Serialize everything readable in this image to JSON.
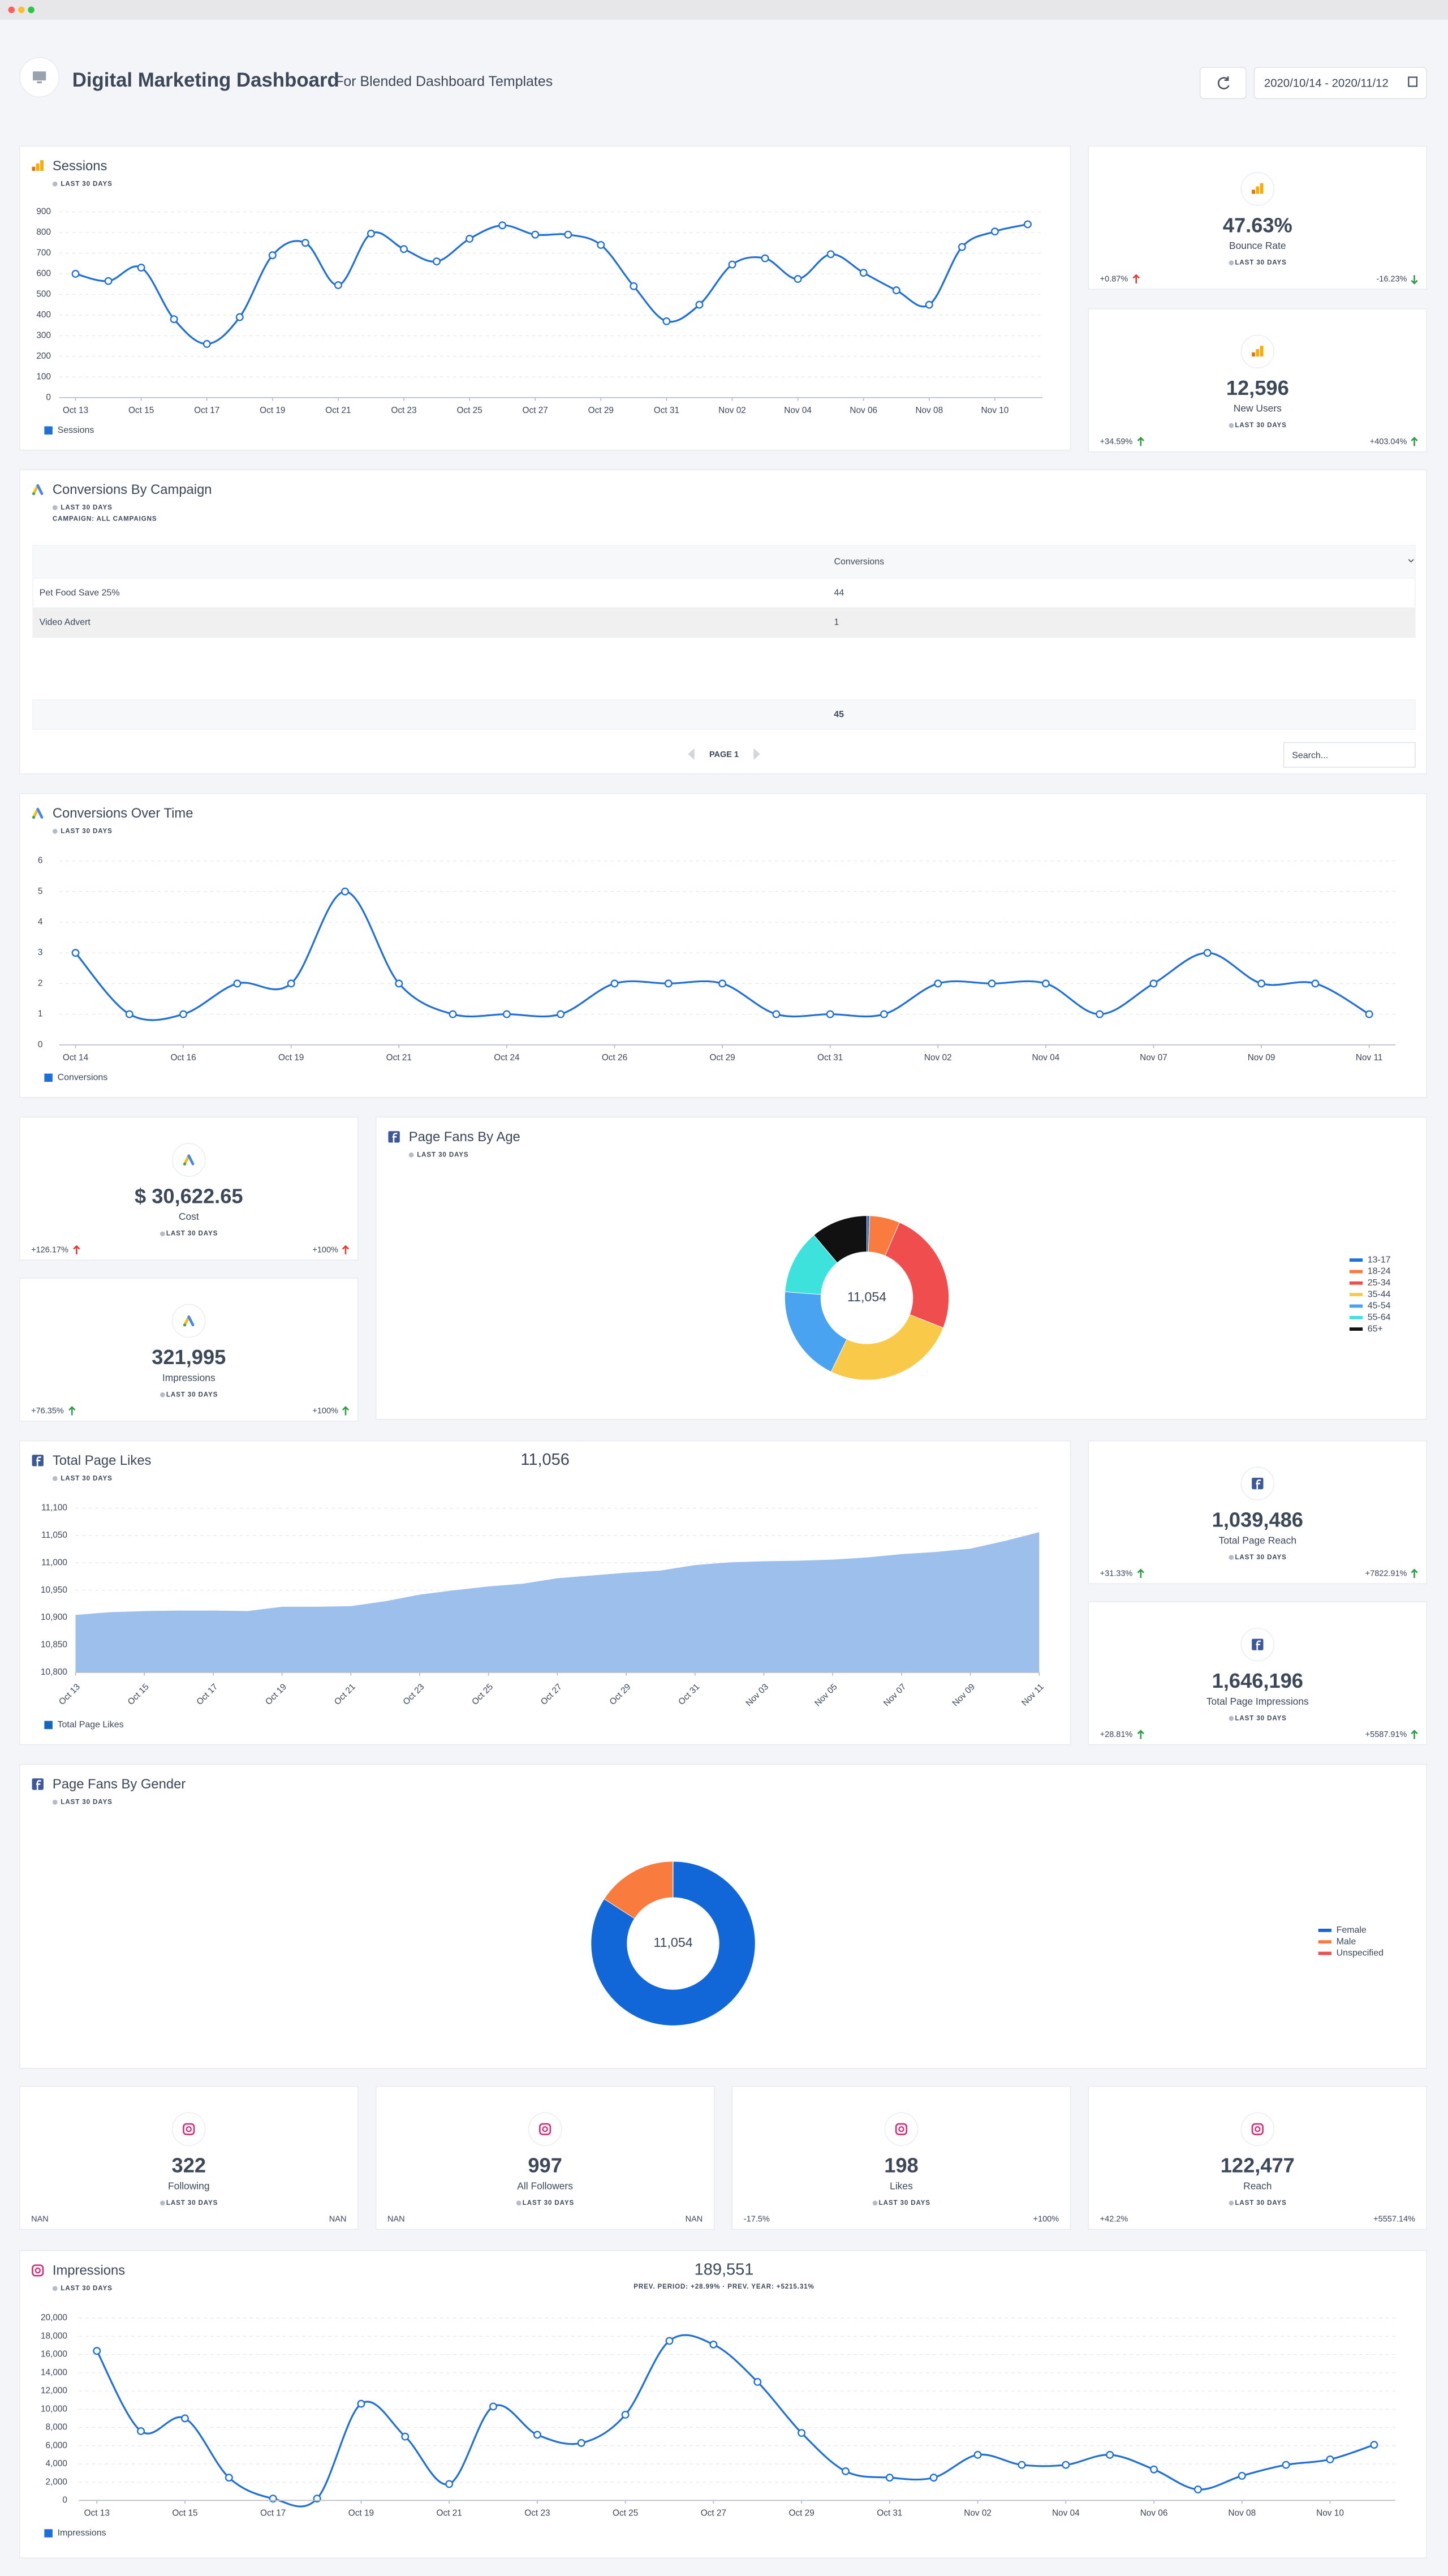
{
  "header": {
    "title": "Digital Marketing Dashboard",
    "subtitle": "For Blended Dashboard Templates",
    "date_range": "2020/10/14 - 2020/11/12"
  },
  "kpis": [
    {
      "title": "Bounce Rate",
      "value": "47.63%",
      "period": "LAST 30 DAYS",
      "left": "+0.87%",
      "right": "-16.23%",
      "left_color": "#e53935",
      "right_color": "#2e9e44"
    },
    {
      "title": "New Users",
      "value": "12,596",
      "period": "LAST 30 DAYS",
      "left": "+34.59%",
      "right": "+403.04%",
      "left_color": "#2e9e44",
      "right_color": "#2e9e44"
    },
    {
      "title": "Cost",
      "value": "$ 30,622.65",
      "period": "LAST 30 DAYS",
      "left": "+126.17%",
      "right": "+100%",
      "left_color": "#e53935",
      "right_color": "#e53935"
    },
    {
      "title": "Impressions",
      "value": "321,995",
      "period": "LAST 30 DAYS",
      "left": "+76.35%",
      "right": "+100%",
      "left_color": "#2e9e44",
      "right_color": "#2e9e44"
    },
    {
      "title": "Total Page Reach",
      "value": "1,039,486",
      "period": "LAST 30 DAYS",
      "left": "+31.33%",
      "right": "+7822.91%",
      "left_color": "#2e9e44",
      "right_color": "#2e9e44"
    },
    {
      "title": "Total Page Impressions",
      "value": "1,646,196",
      "period": "LAST 30 DAYS",
      "left": "+28.81%",
      "right": "+5587.91%",
      "left_color": "#2e9e44",
      "right_color": "#2e9e44"
    },
    {
      "title": "Following",
      "value": "322",
      "period": "LAST 30 DAYS",
      "left": "NAN",
      "right": "NAN"
    },
    {
      "title": "All Followers",
      "value": "997",
      "period": "LAST 30 DAYS",
      "left": "NAN",
      "right": "NAN"
    },
    {
      "title": "Likes",
      "value": "198",
      "period": "LAST 30 DAYS",
      "left": "-17.5%",
      "right": "+100%"
    },
    {
      "title": "Reach",
      "value": "122,477",
      "period": "LAST 30 DAYS",
      "left": "+42.2%",
      "right": "+5557.14%"
    }
  ],
  "table": {
    "title": "Conversions By Campaign",
    "subtitle": "LAST 30 DAYS",
    "filter": "CAMPAIGN: ALL CAMPAIGNS",
    "columns": [
      "Conversions"
    ],
    "rows": [
      [
        "Pet Food Save 25%",
        "44"
      ],
      [
        "Video Advert",
        "1"
      ]
    ],
    "total": "45",
    "pagination": "PAGE 1",
    "search_placeholder": "Search..."
  },
  "chart_data": [
    {
      "type": "line",
      "title": "Sessions",
      "subtitle": "LAST 30 DAYS",
      "categories": [
        "Oct 13",
        null,
        "Oct 15",
        null,
        "Oct 17",
        null,
        "Oct 19",
        null,
        "Oct 21",
        null,
        "Oct 23",
        null,
        "Oct 25",
        null,
        "Oct 27",
        null,
        "Oct 29",
        null,
        "Oct 31",
        null,
        "Nov 02",
        null,
        "Nov 04",
        null,
        "Nov 06",
        null,
        "Nov 08",
        null,
        "Nov 10",
        null
      ],
      "series": [
        {
          "name": "Sessions",
          "color": "#1e6fd9",
          "values": [
            600,
            565,
            630,
            380,
            260,
            390,
            690,
            750,
            545,
            795,
            720,
            660,
            770,
            835,
            790,
            790,
            740,
            540,
            370,
            450,
            645,
            675,
            575,
            695,
            605,
            520,
            450,
            730,
            805,
            840
          ]
        }
      ],
      "ylim": [
        0,
        900
      ],
      "yticks": [
        0,
        100,
        200,
        300,
        400,
        500,
        600,
        700,
        800,
        900
      ],
      "grid": true,
      "legend": "bottom-left"
    },
    {
      "type": "line",
      "title": "Conversions Over Time",
      "subtitle": "LAST 30 DAYS",
      "categories": [
        "Oct 14",
        null,
        "Oct 16",
        null,
        "Oct 19",
        null,
        "Oct 21",
        null,
        "Oct 24",
        null,
        "Oct 26",
        null,
        "Oct 29",
        null,
        "Oct 31",
        null,
        "Nov 02",
        null,
        "Nov 04",
        null,
        "Nov 07",
        null,
        "Nov 09",
        null,
        "Nov 11"
      ],
      "series": [
        {
          "name": "Conversions",
          "color": "#1e6fd9",
          "values": [
            3,
            1,
            1,
            2,
            2,
            5,
            2,
            1,
            1,
            1,
            2,
            2,
            2,
            1,
            1,
            1,
            2,
            2,
            2,
            1,
            2,
            3,
            2,
            2,
            1
          ]
        }
      ],
      "ylim": [
        0,
        6
      ],
      "yticks": [
        0,
        1,
        2,
        3,
        4,
        5,
        6
      ],
      "grid": true,
      "legend": "bottom-left"
    },
    {
      "type": "area",
      "title": "Total Page Likes",
      "subtitle": "LAST 30 DAYS",
      "headline": "11,056",
      "categories": [
        "Oct 13",
        null,
        "Oct 15",
        null,
        "Oct 17",
        null,
        "Oct 19",
        null,
        "Oct 21",
        null,
        "Oct 23",
        null,
        "Oct 25",
        null,
        "Oct 27",
        null,
        "Oct 29",
        null,
        "Oct 31",
        null,
        "Nov 03",
        null,
        "Nov 05",
        null,
        "Nov 07",
        null,
        "Nov 09",
        null,
        "Nov 11"
      ],
      "series": [
        {
          "name": "Total Page Likes",
          "color": "#9dbfec",
          "values": [
            10905,
            10910,
            10912,
            10913,
            10913,
            10912,
            10920,
            10920,
            10921,
            10930,
            10942,
            10950,
            10957,
            10962,
            10972,
            10977,
            10982,
            10986,
            10996,
            11001,
            11003,
            11004,
            11006,
            11010,
            11016,
            11020,
            11026,
            11040,
            11056
          ]
        }
      ],
      "ylim": [
        10800,
        11100
      ],
      "yticks": [
        {
          "value": 10800,
          "label": "10,800"
        },
        {
          "value": 10850,
          "label": "10,850"
        },
        {
          "value": 10900,
          "label": "10,900"
        },
        {
          "value": 10950,
          "label": "10,950"
        },
        {
          "value": 11000,
          "label": "11,000"
        },
        {
          "value": 11050,
          "label": "11,050"
        },
        {
          "value": 11100,
          "label": "11,100"
        }
      ],
      "grid": true,
      "legend": "bottom-left"
    },
    {
      "type": "donut",
      "title": "Page Fans By Age",
      "subtitle": "LAST 30 DAYS",
      "center_label": "11,054",
      "categories": [
        "13-17",
        "18-24",
        "25-34",
        "35-44",
        "45-54",
        "55-64",
        "65+"
      ],
      "values": [
        60,
        660,
        2700,
        2900,
        2100,
        1400,
        1234
      ],
      "colors": [
        "#1e6fd9",
        "#f97b3d",
        "#f04e4e",
        "#f9c94a",
        "#4aa3f0",
        "#3ee2dc",
        "#111111"
      ],
      "legend": "right"
    },
    {
      "type": "donut",
      "title": "Page Fans By Gender",
      "subtitle": "LAST 30 DAYS",
      "center_label": "11,054",
      "categories": [
        "Female",
        "Male",
        "Unspecified"
      ],
      "values": [
        9300,
        1750,
        4
      ],
      "colors": [
        "#1167d8",
        "#f97b3d",
        "#f04e4e"
      ],
      "legend": "right"
    },
    {
      "type": "line",
      "title": "Impressions",
      "subtitle": "LAST 30 DAYS",
      "headline": "189,551",
      "note": "PREV. PERIOD: +28.99% · PREV. YEAR: +5215.31%",
      "categories": [
        "Oct 13",
        null,
        "Oct 15",
        null,
        "Oct 17",
        null,
        "Oct 19",
        null,
        "Oct 21",
        null,
        "Oct 23",
        null,
        "Oct 25",
        null,
        "Oct 27",
        null,
        "Oct 29",
        null,
        "Oct 31",
        null,
        "Nov 02",
        null,
        "Nov 04",
        null,
        "Nov 06",
        null,
        "Nov 08",
        null,
        "Nov 10",
        null
      ],
      "series": [
        {
          "name": "Impressions",
          "color": "#1e6fd9",
          "values": [
            16400,
            7600,
            9000,
            2500,
            200,
            200,
            10600,
            7000,
            1800,
            10300,
            7200,
            6300,
            9400,
            17500,
            17100,
            13000,
            7400,
            3200,
            2500,
            2500,
            5000,
            3900,
            3900,
            5000,
            3400,
            1200,
            2700,
            3900,
            4500,
            6100
          ]
        }
      ],
      "ylim": [
        0,
        20000
      ],
      "yticks": [
        0,
        {
          "value": 2000,
          "label": "2,000"
        },
        {
          "value": 4000,
          "label": "4,000"
        },
        {
          "value": 6000,
          "label": "6,000"
        },
        {
          "value": 8000,
          "label": "8,000"
        },
        {
          "value": 10000,
          "label": "10,000"
        },
        {
          "value": 12000,
          "label": "12,000"
        },
        {
          "value": 14000,
          "label": "14,000"
        },
        {
          "value": 16000,
          "label": "16,000"
        },
        {
          "value": 18000,
          "label": "18,000"
        },
        {
          "value": 20000,
          "label": "20,000"
        }
      ],
      "grid": true,
      "legend": "bottom-left"
    }
  ]
}
